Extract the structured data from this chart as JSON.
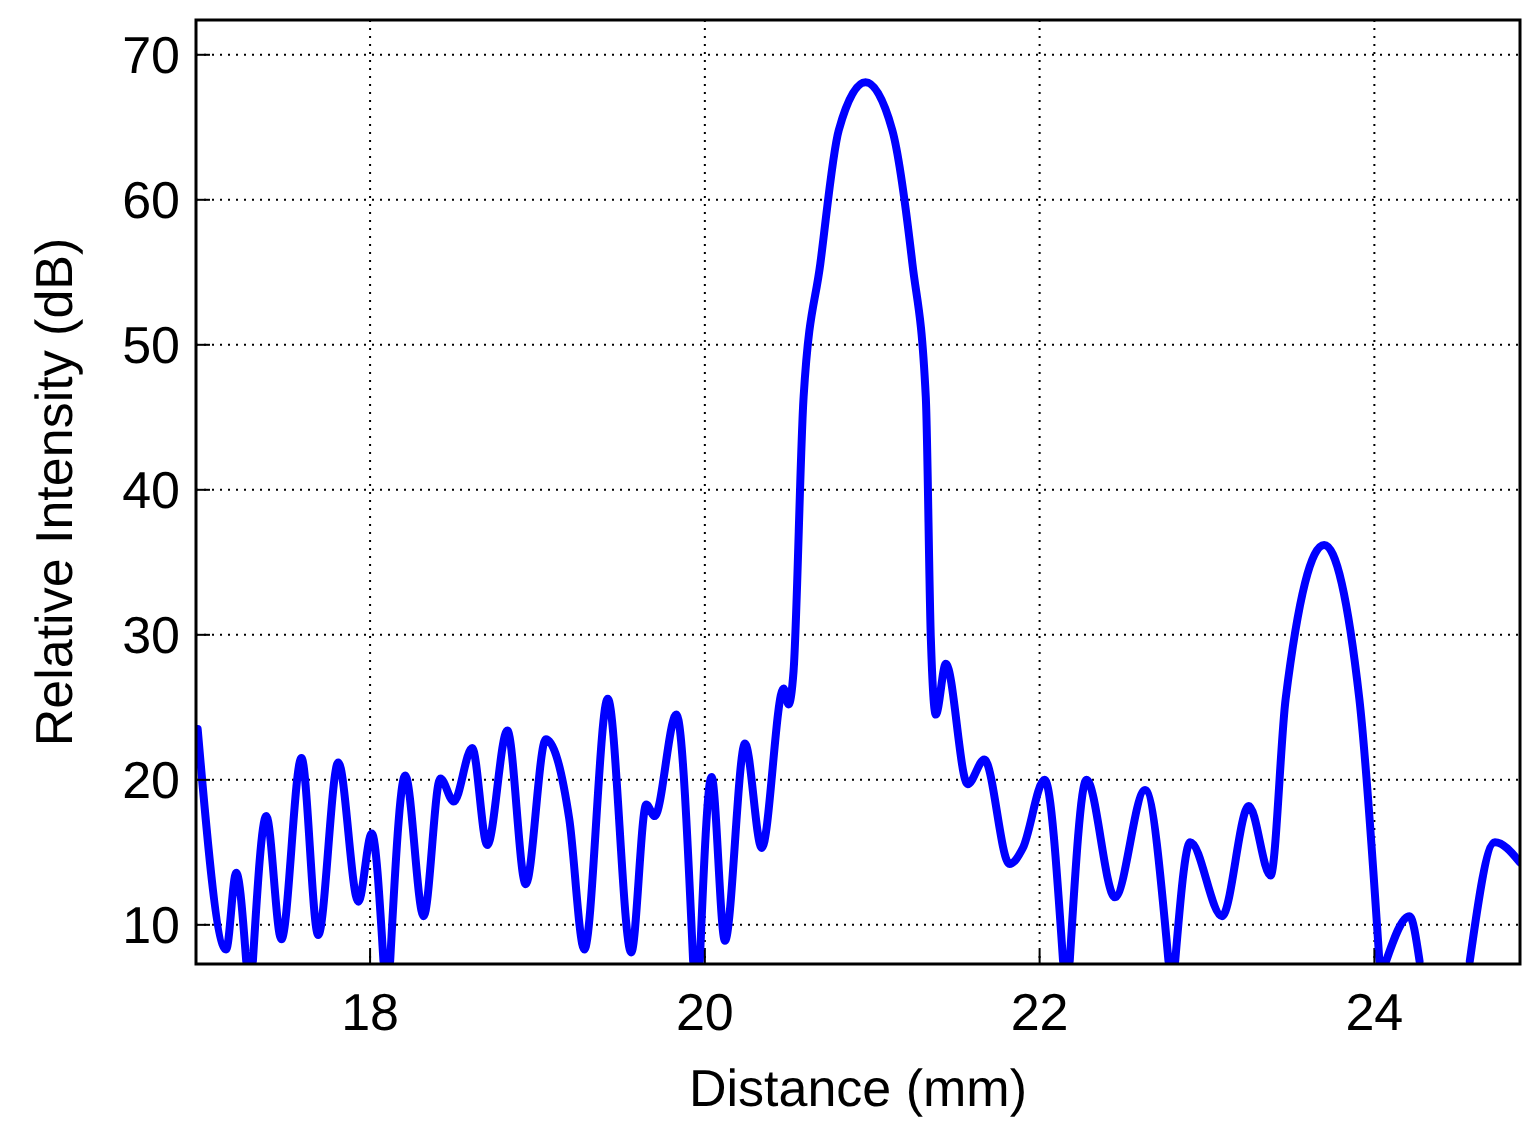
{
  "chart_data": {
    "type": "line",
    "xlabel": "Distance (mm)",
    "ylabel": "Relative Intensity (dB)",
    "xlim": [
      16.96,
      24.87
    ],
    "xticks": [
      18,
      20,
      22,
      24
    ],
    "ylim": [
      7.3,
      72.4
    ],
    "yticks": [
      10,
      20,
      30,
      40,
      50,
      60,
      70
    ],
    "grid": true,
    "series": [
      {
        "color": "#0000ff",
        "x": [
          16.97,
          17.14,
          17.2,
          17.26,
          17.28,
          17.3,
          17.38,
          17.47,
          17.59,
          17.69,
          17.81,
          17.93,
          18.01,
          18.08,
          18.1,
          18.12,
          18.21,
          18.32,
          18.42,
          18.5,
          18.61,
          18.7,
          18.82,
          18.93,
          19.05,
          19.19,
          19.28,
          19.42,
          19.56,
          19.65,
          19.7,
          19.83,
          19.93,
          19.95,
          19.97,
          20.04,
          20.12,
          20.24,
          20.34,
          20.47,
          20.5,
          20.53,
          20.59,
          20.69,
          20.8,
          20.96,
          21.12,
          21.24,
          21.32,
          21.35,
          21.38,
          21.44,
          21.57,
          21.67,
          21.82,
          21.9,
          22.03,
          22.14,
          22.16,
          22.18,
          22.28,
          22.45,
          22.63,
          22.77,
          22.79,
          22.81,
          22.9,
          23.09,
          23.25,
          23.38,
          23.47,
          23.7,
          23.91,
          24.03,
          24.05,
          24.07,
          24.21,
          24.27,
          24.42,
          24.57,
          24.72,
          24.87
        ],
        "values": [
          23.5,
          8.3,
          13.6,
          7.5,
          null,
          7.5,
          17.5,
          9,
          21.5,
          9.3,
          21.2,
          11.6,
          16.3,
          7.5,
          null,
          7.5,
          20.3,
          10.6,
          20.1,
          18.5,
          22.2,
          15.5,
          23.4,
          12.8,
          22.8,
          17.3,
          8.3,
          25.6,
          8.1,
          18.3,
          17.5,
          24.5,
          7.5,
          null,
          7.5,
          20.2,
          8.9,
          22.5,
          15.3,
          26.3,
          25.2,
          27.5,
          46.4,
          55.6,
          64.8,
          68.1,
          64.8,
          55.6,
          46.4,
          29.8,
          24.5,
          28,
          19.7,
          21.4,
          14.2,
          15.3,
          20,
          7.5,
          null,
          7.5,
          20,
          11.9,
          19.3,
          7.5,
          null,
          7.5,
          15.7,
          10.6,
          18.2,
          13.4,
          25.6,
          36.2,
          25.6,
          7.5,
          null,
          7.5,
          10.6,
          7.5,
          null,
          7.5,
          15.7,
          14.3
        ]
      }
    ]
  }
}
